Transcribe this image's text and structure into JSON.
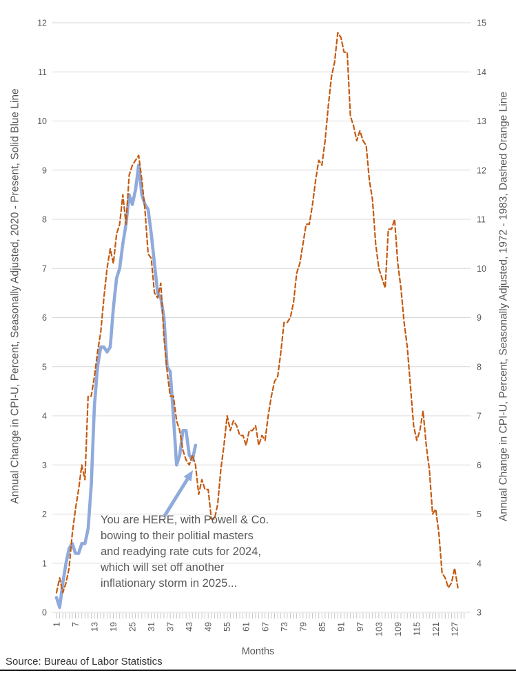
{
  "chart_data": {
    "type": "line",
    "title": "",
    "xlabel": "Months",
    "x_ticks": [
      1,
      7,
      13,
      19,
      25,
      31,
      37,
      43,
      49,
      55,
      61,
      67,
      73,
      79,
      85,
      91,
      97,
      103,
      109,
      115,
      121,
      127
    ],
    "x_range": [
      1,
      130
    ],
    "grid": true,
    "legend": "none",
    "left_axis": {
      "label": "Annual Change in CPI-U, Percent, Seasonally Adjusted, 2020 - Present, Solid Blue Line",
      "min": 0,
      "max": 12,
      "step": 1
    },
    "right_axis": {
      "label": "Annual Change in CPI-U, Percent, Seasonally Adjusted, 1972 - 1983, Dashed Orange Line",
      "min": 3,
      "max": 15,
      "step": 1
    },
    "series": [
      {
        "name": "Annual CPI-U change, 2020 - Present",
        "axis": "left",
        "style": "solid",
        "color": "#8FAADC",
        "width": 4.6,
        "x_start": 1,
        "values": [
          0.3,
          0.1,
          0.6,
          1.0,
          1.3,
          1.4,
          1.2,
          1.2,
          1.4,
          1.4,
          1.7,
          2.6,
          4.2,
          5.0,
          5.4,
          5.4,
          5.3,
          5.4,
          6.2,
          6.8,
          7.0,
          7.5,
          7.9,
          8.5,
          8.3,
          8.6,
          9.1,
          8.5,
          8.3,
          8.2,
          7.7,
          7.1,
          6.5,
          6.4,
          6.0,
          5.0,
          4.9,
          4.0,
          3.0,
          3.2,
          3.7,
          3.7,
          3.2,
          3.1,
          3.4
        ]
      },
      {
        "name": "Annual CPI-U change, 1972 - 1983",
        "axis": "right",
        "style": "dashed",
        "color": "#C55A11",
        "width": 2.2,
        "x_start": 1,
        "values": [
          3.4,
          3.7,
          3.4,
          3.6,
          3.9,
          4.6,
          5.1,
          5.5,
          6.0,
          5.7,
          7.4,
          7.4,
          7.8,
          8.3,
          8.7,
          9.4,
          10.0,
          10.4,
          10.1,
          10.7,
          10.9,
          11.5,
          10.9,
          11.9,
          12.1,
          12.2,
          12.3,
          11.8,
          11.2,
          10.3,
          10.2,
          9.5,
          9.4,
          9.7,
          8.6,
          7.9,
          7.4,
          7.4,
          6.9,
          6.7,
          6.3,
          6.1,
          6.0,
          6.2,
          6.0,
          5.4,
          5.7,
          5.5,
          5.5,
          4.9,
          4.9,
          5.2,
          5.9,
          6.4,
          7.0,
          6.7,
          6.9,
          6.8,
          6.6,
          6.6,
          6.4,
          6.7,
          6.7,
          6.8,
          6.4,
          6.6,
          6.5,
          7.0,
          7.4,
          7.7,
          7.8,
          8.3,
          8.9,
          8.9,
          9.0,
          9.3,
          9.9,
          10.1,
          10.5,
          10.9,
          10.9,
          11.3,
          11.8,
          12.2,
          12.1,
          12.6,
          13.3,
          13.9,
          14.2,
          14.8,
          14.7,
          14.4,
          14.4,
          13.1,
          12.9,
          12.6,
          12.8,
          12.6,
          12.5,
          11.8,
          11.4,
          10.5,
          10.0,
          9.8,
          9.6,
          10.8,
          10.8,
          11.0,
          10.1,
          9.6,
          8.9,
          8.4,
          7.6,
          6.8,
          6.5,
          6.7,
          7.1,
          6.4,
          5.9,
          5.0,
          5.1,
          4.6,
          3.8,
          3.7,
          3.5,
          3.6,
          3.9,
          3.5
        ]
      }
    ],
    "colors": {
      "gridline": "#D9D9D9",
      "tick_text": "#595959",
      "minor_tick": "#BFBFBF"
    }
  },
  "annotation": {
    "lines": [
      "You are HERE, with Powell & Co.",
      "bowing to their politial masters",
      "and readying rate cuts for 2024,",
      "which will set off another",
      "inflationary storm in 2025..."
    ],
    "arrow_color": "#8FAADC"
  },
  "footer": {
    "source": "Source: Bureau of Labor Statistics"
  }
}
